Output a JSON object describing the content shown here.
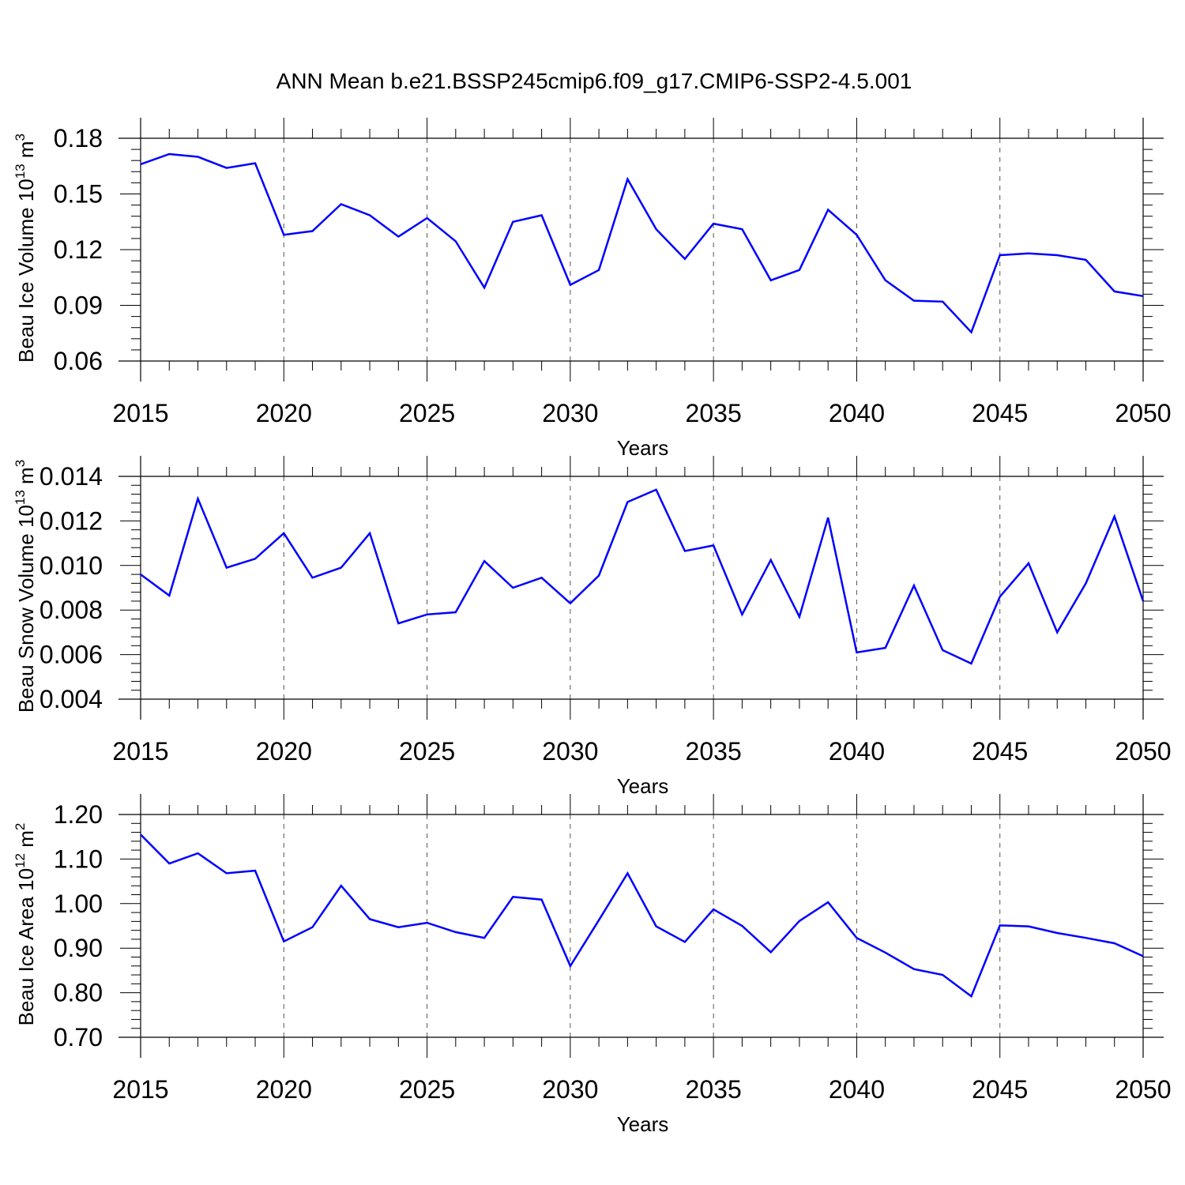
{
  "title": "ANN Mean b.e21.BSSP245cmip6.f09_g17.CMIP6-SSP2-4.5.001",
  "chart_data": [
    {
      "type": "line",
      "ylabel_main": "Beau Ice Volume 10",
      "ylabel_exp": "13",
      "ylabel_unit": " m",
      "ylabel_unit_exp": "3",
      "xlabel": "Years",
      "xlim": [
        2015,
        2050
      ],
      "ylim": [
        0.06,
        0.18
      ],
      "yticks": [
        0.06,
        0.09,
        0.12,
        0.15,
        0.18
      ],
      "ytick_labels": [
        "0.06",
        "0.09",
        "0.12",
        "0.15",
        "0.18"
      ],
      "xticks": [
        2015,
        2020,
        2025,
        2030,
        2035,
        2040,
        2045,
        2050
      ],
      "xtick_labels": [
        "2015",
        "2020",
        "2025",
        "2030",
        "2035",
        "2040",
        "2045",
        "2050"
      ],
      "grid_x": true,
      "color": "#0000ff",
      "x": [
        2015,
        2016,
        2017,
        2018,
        2019,
        2020,
        2021,
        2022,
        2023,
        2024,
        2025,
        2026,
        2027,
        2028,
        2029,
        2030,
        2031,
        2032,
        2033,
        2034,
        2035,
        2036,
        2037,
        2038,
        2039,
        2040,
        2041,
        2042,
        2043,
        2044,
        2045,
        2046,
        2047,
        2048,
        2049,
        2050
      ],
      "values": [
        0.166,
        0.1715,
        0.17,
        0.164,
        0.1665,
        0.128,
        0.13,
        0.1445,
        0.1385,
        0.127,
        0.137,
        0.1245,
        0.0995,
        0.135,
        0.1385,
        0.101,
        0.109,
        0.158,
        0.131,
        0.115,
        0.134,
        0.131,
        0.1035,
        0.109,
        0.1415,
        0.128,
        0.1035,
        0.0925,
        0.092,
        0.0755,
        0.117,
        0.118,
        0.117,
        0.1145,
        0.0975,
        0.095
      ]
    },
    {
      "type": "line",
      "ylabel_main": "Beau Snow Volume 10",
      "ylabel_exp": "13",
      "ylabel_unit": " m",
      "ylabel_unit_exp": "3",
      "xlabel": "Years",
      "xlim": [
        2015,
        2050
      ],
      "ylim": [
        0.004,
        0.014
      ],
      "yticks": [
        0.004,
        0.006,
        0.008,
        0.01,
        0.012,
        0.014
      ],
      "ytick_labels": [
        "0.004",
        "0.006",
        "0.008",
        "0.010",
        "0.012",
        "0.014"
      ],
      "xticks": [
        2015,
        2020,
        2025,
        2030,
        2035,
        2040,
        2045,
        2050
      ],
      "xtick_labels": [
        "2015",
        "2020",
        "2025",
        "2030",
        "2035",
        "2040",
        "2045",
        "2050"
      ],
      "grid_x": true,
      "color": "#0000ff",
      "x": [
        2015,
        2016,
        2017,
        2018,
        2019,
        2020,
        2021,
        2022,
        2023,
        2024,
        2025,
        2026,
        2027,
        2028,
        2029,
        2030,
        2031,
        2032,
        2033,
        2034,
        2035,
        2036,
        2037,
        2038,
        2039,
        2040,
        2041,
        2042,
        2043,
        2044,
        2045,
        2046,
        2047,
        2048,
        2049,
        2050
      ],
      "values": [
        0.0096,
        0.00865,
        0.013,
        0.0099,
        0.0103,
        0.01145,
        0.00945,
        0.0099,
        0.01145,
        0.0074,
        0.0078,
        0.0079,
        0.0102,
        0.009,
        0.00945,
        0.0083,
        0.00955,
        0.01285,
        0.0134,
        0.01065,
        0.0109,
        0.0078,
        0.01025,
        0.0077,
        0.01215,
        0.0061,
        0.0063,
        0.0091,
        0.0062,
        0.0056,
        0.0086,
        0.0101,
        0.007,
        0.0092,
        0.0122,
        0.0084
      ]
    },
    {
      "type": "line",
      "ylabel_main": "Beau Ice Area 10",
      "ylabel_exp": "12",
      "ylabel_unit": " m",
      "ylabel_unit_exp": "2",
      "xlabel": "Years",
      "xlim": [
        2015,
        2050
      ],
      "ylim": [
        0.7,
        1.2
      ],
      "yticks": [
        0.7,
        0.8,
        0.9,
        1.0,
        1.1,
        1.2
      ],
      "ytick_labels": [
        "0.70",
        "0.80",
        "0.90",
        "1.00",
        "1.10",
        "1.20"
      ],
      "xticks": [
        2015,
        2020,
        2025,
        2030,
        2035,
        2040,
        2045,
        2050
      ],
      "xtick_labels": [
        "2015",
        "2020",
        "2025",
        "2030",
        "2035",
        "2040",
        "2045",
        "2050"
      ],
      "grid_x": true,
      "color": "#0000ff",
      "x": [
        2015,
        2016,
        2017,
        2018,
        2019,
        2020,
        2021,
        2022,
        2023,
        2024,
        2025,
        2026,
        2027,
        2028,
        2029,
        2030,
        2031,
        2032,
        2033,
        2034,
        2035,
        2036,
        2037,
        2038,
        2039,
        2040,
        2041,
        2042,
        2043,
        2044,
        2045,
        2046,
        2047,
        2048,
        2049,
        2050
      ],
      "values": [
        1.155,
        1.09,
        1.113,
        1.068,
        1.074,
        0.915,
        0.947,
        1.04,
        0.965,
        0.947,
        0.957,
        0.936,
        0.923,
        1.015,
        1.009,
        0.86,
        0.963,
        1.068,
        0.949,
        0.914,
        0.987,
        0.95,
        0.891,
        0.961,
        1.003,
        0.923,
        0.89,
        0.853,
        0.84,
        0.792,
        0.951,
        0.949,
        0.934,
        0.923,
        0.911,
        0.882
      ]
    }
  ]
}
